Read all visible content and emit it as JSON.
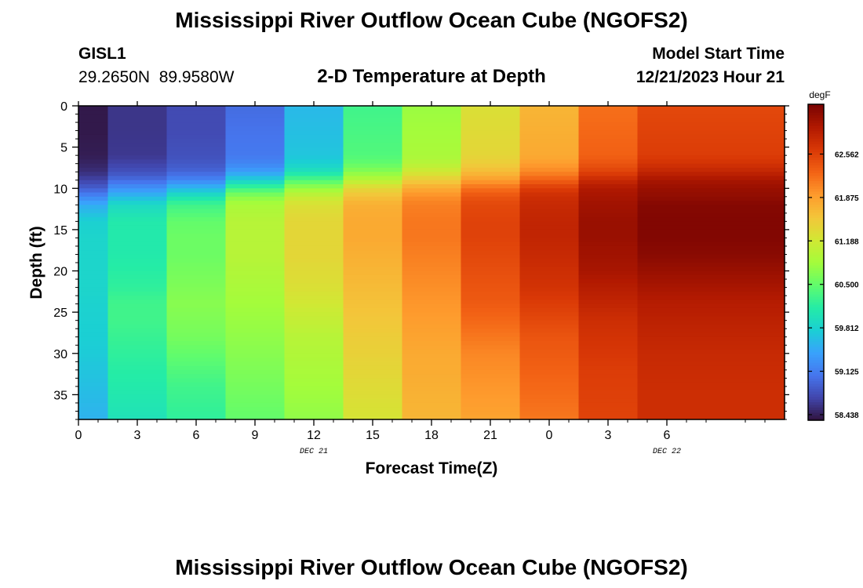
{
  "page": {
    "title": "Mississippi River Outflow Ocean Cube (NGOFS2)",
    "station_id": "GISL1",
    "station_coords": "29.2650N  89.9580W",
    "subtitle": "2-D Temperature at Depth",
    "model_start_label": "Model Start Time",
    "model_start_value": "12/21/2023 Hour 21",
    "bottom_title": "Mississippi River Outflow Ocean Cube (NGOFS2)"
  },
  "chart_data": {
    "type": "heatmap",
    "title": "2-D Temperature at Depth",
    "xlabel": "Forecast Time(Z)",
    "ylabel": "Depth (ft)",
    "x_range_hours": [
      0,
      36
    ],
    "y_range_ft": [
      0,
      38
    ],
    "y_inverted": true,
    "x_ticks": [
      {
        "hour": 0,
        "label": "0"
      },
      {
        "hour": 3,
        "label": "3"
      },
      {
        "hour": 6,
        "label": "6"
      },
      {
        "hour": 9,
        "label": "9"
      },
      {
        "hour": 12,
        "label": "12"
      },
      {
        "hour": 15,
        "label": "15"
      },
      {
        "hour": 18,
        "label": "18"
      },
      {
        "hour": 21,
        "label": "21"
      },
      {
        "hour": 24,
        "label": "0"
      },
      {
        "hour": 27,
        "label": "3"
      },
      {
        "hour": 30,
        "label": "6"
      }
    ],
    "date_labels": [
      {
        "hour": 12,
        "label": "DEC 21"
      },
      {
        "hour": 30,
        "label": "DEC 22"
      }
    ],
    "y_ticks": [
      0,
      5,
      10,
      15,
      20,
      25,
      30,
      35
    ],
    "colorbar": {
      "unit": "degF",
      "min": 58.35,
      "max": 63.35,
      "tick_values": [
        58.438,
        59.125,
        59.812,
        60.5,
        61.188,
        61.875,
        62.562
      ],
      "tick_labels": [
        "58.438",
        "59.125",
        "59.812",
        "60.500",
        "61.188",
        "61.875",
        "62.562"
      ],
      "colormap": [
        "#30123b",
        "#4145ab",
        "#4675ed",
        "#39a2fc",
        "#1bcfd4",
        "#24eca6",
        "#61fc6c",
        "#a4fc3b",
        "#d1e834",
        "#f3c63a",
        "#fe9b2d",
        "#f36315",
        "#d93806",
        "#b11901",
        "#7a0402"
      ]
    },
    "time_centers_hours": [
      0,
      3,
      6,
      9,
      12,
      15,
      18,
      21,
      24,
      27,
      30
    ],
    "depth_profile_ft": [
      0,
      3,
      6,
      7,
      8,
      9,
      10,
      11,
      12,
      14,
      16,
      18,
      20,
      22,
      24,
      26,
      28,
      30,
      32,
      34,
      36,
      38
    ],
    "values_degF": [
      [
        58.4,
        58.4,
        58.43,
        58.48,
        58.55,
        58.7,
        58.9,
        59.2,
        59.5,
        59.8,
        59.85,
        59.85,
        59.85,
        59.85,
        59.82,
        59.8,
        59.78,
        59.75,
        59.7,
        59.65,
        59.6,
        59.55
      ],
      [
        58.6,
        58.6,
        58.62,
        58.7,
        58.8,
        59.0,
        59.3,
        59.6,
        59.9,
        60.1,
        60.1,
        60.1,
        60.15,
        60.2,
        60.3,
        60.3,
        60.25,
        60.2,
        60.15,
        60.1,
        60.05,
        60.0
      ],
      [
        58.75,
        58.75,
        58.8,
        58.85,
        58.95,
        59.2,
        59.6,
        60.0,
        60.3,
        60.5,
        60.55,
        60.55,
        60.6,
        60.65,
        60.7,
        60.65,
        60.6,
        60.5,
        60.4,
        60.3,
        60.25,
        60.2
      ],
      [
        59.0,
        59.05,
        59.1,
        59.2,
        59.4,
        59.8,
        60.3,
        60.7,
        60.9,
        61.0,
        61.0,
        61.0,
        60.95,
        60.9,
        60.85,
        60.8,
        60.75,
        60.7,
        60.65,
        60.6,
        60.55,
        60.5
      ],
      [
        59.6,
        59.65,
        59.7,
        59.8,
        60.0,
        60.4,
        60.8,
        61.1,
        61.3,
        61.4,
        61.4,
        61.4,
        61.35,
        61.3,
        61.2,
        61.1,
        61.0,
        60.95,
        60.9,
        60.85,
        60.8,
        60.75
      ],
      [
        60.3,
        60.35,
        60.4,
        60.5,
        60.7,
        61.0,
        61.4,
        61.6,
        61.75,
        61.8,
        61.8,
        61.75,
        61.7,
        61.65,
        61.6,
        61.55,
        61.5,
        61.45,
        61.4,
        61.35,
        61.3,
        61.25
      ],
      [
        60.8,
        60.85,
        60.9,
        61.0,
        61.2,
        61.5,
        61.8,
        62.0,
        62.1,
        62.15,
        62.15,
        62.1,
        62.05,
        62.0,
        61.95,
        61.9,
        61.85,
        61.8,
        61.78,
        61.75,
        61.72,
        61.7
      ],
      [
        61.3,
        61.35,
        61.4,
        61.5,
        61.65,
        61.9,
        62.2,
        62.4,
        62.5,
        62.55,
        62.55,
        62.5,
        62.45,
        62.4,
        62.35,
        62.25,
        62.15,
        62.05,
        62.0,
        61.95,
        61.9,
        61.85
      ],
      [
        61.7,
        61.75,
        61.8,
        61.9,
        62.05,
        62.3,
        62.6,
        62.75,
        62.8,
        62.85,
        62.85,
        62.8,
        62.75,
        62.7,
        62.6,
        62.5,
        62.4,
        62.35,
        62.3,
        62.25,
        62.2,
        62.15
      ],
      [
        62.2,
        62.25,
        62.3,
        62.4,
        62.55,
        62.8,
        63.0,
        63.05,
        63.1,
        63.15,
        63.15,
        63.1,
        63.05,
        62.95,
        62.85,
        62.75,
        62.7,
        62.65,
        62.6,
        62.58,
        62.56,
        62.55
      ],
      [
        62.5,
        62.55,
        62.6,
        62.7,
        62.85,
        63.05,
        63.15,
        63.2,
        63.28,
        63.3,
        63.3,
        63.25,
        63.15,
        63.05,
        62.95,
        62.9,
        62.85,
        62.8,
        62.78,
        62.76,
        62.75,
        62.75
      ]
    ]
  }
}
